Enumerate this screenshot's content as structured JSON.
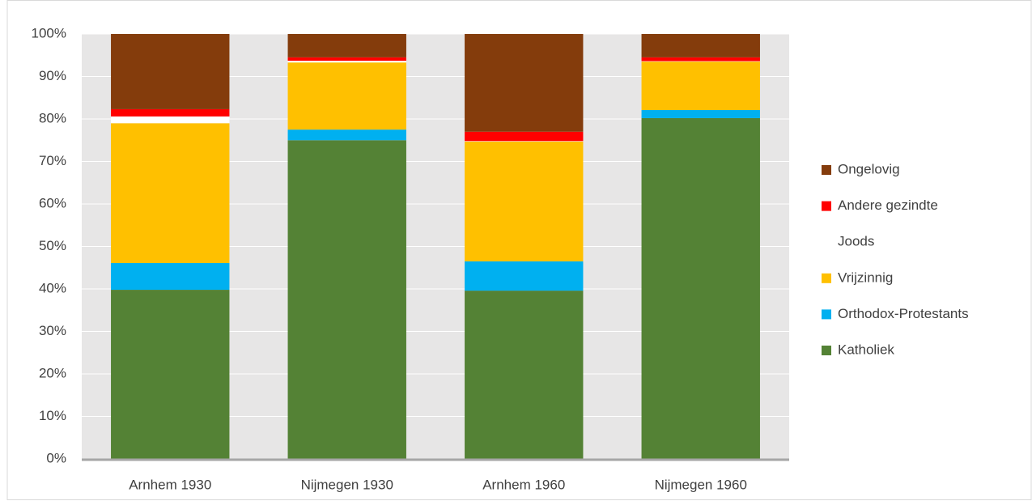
{
  "chart_data": {
    "type": "stacked_bar",
    "categories": [
      "Arnhem 1930",
      "Nijmegen 1930",
      "Arnhem 1960",
      "Nijmegen 1960"
    ],
    "series": [
      {
        "name": "Katholiek",
        "color": "#548235",
        "values": [
          39.8,
          75.0,
          39.6,
          80.2
        ]
      },
      {
        "name": "Orthodox-Protestants",
        "color": "#00b0f0",
        "values": [
          6.3,
          2.5,
          6.9,
          1.9
        ]
      },
      {
        "name": "Vrijzinnig",
        "color": "#ffc000",
        "values": [
          32.9,
          15.8,
          28.2,
          11.4
        ]
      },
      {
        "name": "Joods",
        "color": "#ffffff",
        "values": [
          1.6,
          0.4,
          0.1,
          0.1
        ]
      },
      {
        "name": "Andere gezindte",
        "color": "#ff0000",
        "values": [
          1.7,
          0.8,
          2.2,
          0.9
        ]
      },
      {
        "name": "Ongelovig",
        "color": "#843c0c",
        "values": [
          17.7,
          5.5,
          23.0,
          5.5
        ]
      }
    ],
    "ylim": [
      0,
      100
    ],
    "yticks": [
      {
        "value": 0,
        "label": "0%"
      },
      {
        "value": 10,
        "label": "10%"
      },
      {
        "value": 20,
        "label": "20%"
      },
      {
        "value": 30,
        "label": "30%"
      },
      {
        "value": 40,
        "label": "40%"
      },
      {
        "value": 50,
        "label": "50%"
      },
      {
        "value": 60,
        "label": "60%"
      },
      {
        "value": 70,
        "label": "70%"
      },
      {
        "value": 80,
        "label": "80%"
      },
      {
        "value": 90,
        "label": "90%"
      },
      {
        "value": 100,
        "label": "100%"
      }
    ],
    "grid": true,
    "legend": "right"
  }
}
